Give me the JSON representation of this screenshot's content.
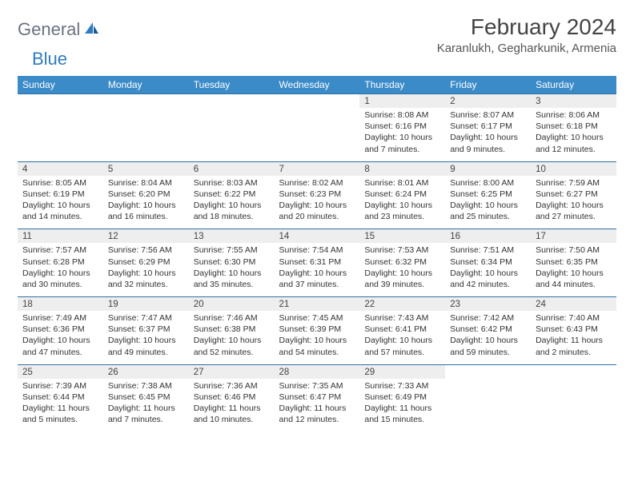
{
  "brand": {
    "word1": "General",
    "word2": "Blue"
  },
  "colors": {
    "header_bg": "#3b8bc8",
    "header_text": "#ffffff",
    "daynum_bg": "#eeeeee",
    "week_border": "#2f6fa3",
    "brand_gray": "#6b7280",
    "brand_blue": "#2f7bbf",
    "body_text": "#333333"
  },
  "title": "February 2024",
  "location": "Karanlukh, Gegharkunik, Armenia",
  "day_headers": [
    "Sunday",
    "Monday",
    "Tuesday",
    "Wednesday",
    "Thursday",
    "Friday",
    "Saturday"
  ],
  "weeks": [
    [
      null,
      null,
      null,
      null,
      {
        "n": "1",
        "sunrise": "8:08 AM",
        "sunset": "6:16 PM",
        "dl": "10 hours and 7 minutes."
      },
      {
        "n": "2",
        "sunrise": "8:07 AM",
        "sunset": "6:17 PM",
        "dl": "10 hours and 9 minutes."
      },
      {
        "n": "3",
        "sunrise": "8:06 AM",
        "sunset": "6:18 PM",
        "dl": "10 hours and 12 minutes."
      }
    ],
    [
      {
        "n": "4",
        "sunrise": "8:05 AM",
        "sunset": "6:19 PM",
        "dl": "10 hours and 14 minutes."
      },
      {
        "n": "5",
        "sunrise": "8:04 AM",
        "sunset": "6:20 PM",
        "dl": "10 hours and 16 minutes."
      },
      {
        "n": "6",
        "sunrise": "8:03 AM",
        "sunset": "6:22 PM",
        "dl": "10 hours and 18 minutes."
      },
      {
        "n": "7",
        "sunrise": "8:02 AM",
        "sunset": "6:23 PM",
        "dl": "10 hours and 20 minutes."
      },
      {
        "n": "8",
        "sunrise": "8:01 AM",
        "sunset": "6:24 PM",
        "dl": "10 hours and 23 minutes."
      },
      {
        "n": "9",
        "sunrise": "8:00 AM",
        "sunset": "6:25 PM",
        "dl": "10 hours and 25 minutes."
      },
      {
        "n": "10",
        "sunrise": "7:59 AM",
        "sunset": "6:27 PM",
        "dl": "10 hours and 27 minutes."
      }
    ],
    [
      {
        "n": "11",
        "sunrise": "7:57 AM",
        "sunset": "6:28 PM",
        "dl": "10 hours and 30 minutes."
      },
      {
        "n": "12",
        "sunrise": "7:56 AM",
        "sunset": "6:29 PM",
        "dl": "10 hours and 32 minutes."
      },
      {
        "n": "13",
        "sunrise": "7:55 AM",
        "sunset": "6:30 PM",
        "dl": "10 hours and 35 minutes."
      },
      {
        "n": "14",
        "sunrise": "7:54 AM",
        "sunset": "6:31 PM",
        "dl": "10 hours and 37 minutes."
      },
      {
        "n": "15",
        "sunrise": "7:53 AM",
        "sunset": "6:32 PM",
        "dl": "10 hours and 39 minutes."
      },
      {
        "n": "16",
        "sunrise": "7:51 AM",
        "sunset": "6:34 PM",
        "dl": "10 hours and 42 minutes."
      },
      {
        "n": "17",
        "sunrise": "7:50 AM",
        "sunset": "6:35 PM",
        "dl": "10 hours and 44 minutes."
      }
    ],
    [
      {
        "n": "18",
        "sunrise": "7:49 AM",
        "sunset": "6:36 PM",
        "dl": "10 hours and 47 minutes."
      },
      {
        "n": "19",
        "sunrise": "7:47 AM",
        "sunset": "6:37 PM",
        "dl": "10 hours and 49 minutes."
      },
      {
        "n": "20",
        "sunrise": "7:46 AM",
        "sunset": "6:38 PM",
        "dl": "10 hours and 52 minutes."
      },
      {
        "n": "21",
        "sunrise": "7:45 AM",
        "sunset": "6:39 PM",
        "dl": "10 hours and 54 minutes."
      },
      {
        "n": "22",
        "sunrise": "7:43 AM",
        "sunset": "6:41 PM",
        "dl": "10 hours and 57 minutes."
      },
      {
        "n": "23",
        "sunrise": "7:42 AM",
        "sunset": "6:42 PM",
        "dl": "10 hours and 59 minutes."
      },
      {
        "n": "24",
        "sunrise": "7:40 AM",
        "sunset": "6:43 PM",
        "dl": "11 hours and 2 minutes."
      }
    ],
    [
      {
        "n": "25",
        "sunrise": "7:39 AM",
        "sunset": "6:44 PM",
        "dl": "11 hours and 5 minutes."
      },
      {
        "n": "26",
        "sunrise": "7:38 AM",
        "sunset": "6:45 PM",
        "dl": "11 hours and 7 minutes."
      },
      {
        "n": "27",
        "sunrise": "7:36 AM",
        "sunset": "6:46 PM",
        "dl": "11 hours and 10 minutes."
      },
      {
        "n": "28",
        "sunrise": "7:35 AM",
        "sunset": "6:47 PM",
        "dl": "11 hours and 12 minutes."
      },
      {
        "n": "29",
        "sunrise": "7:33 AM",
        "sunset": "6:49 PM",
        "dl": "11 hours and 15 minutes."
      },
      null,
      null
    ]
  ],
  "labels": {
    "sunrise": "Sunrise: ",
    "sunset": "Sunset: ",
    "daylight": "Daylight: "
  }
}
